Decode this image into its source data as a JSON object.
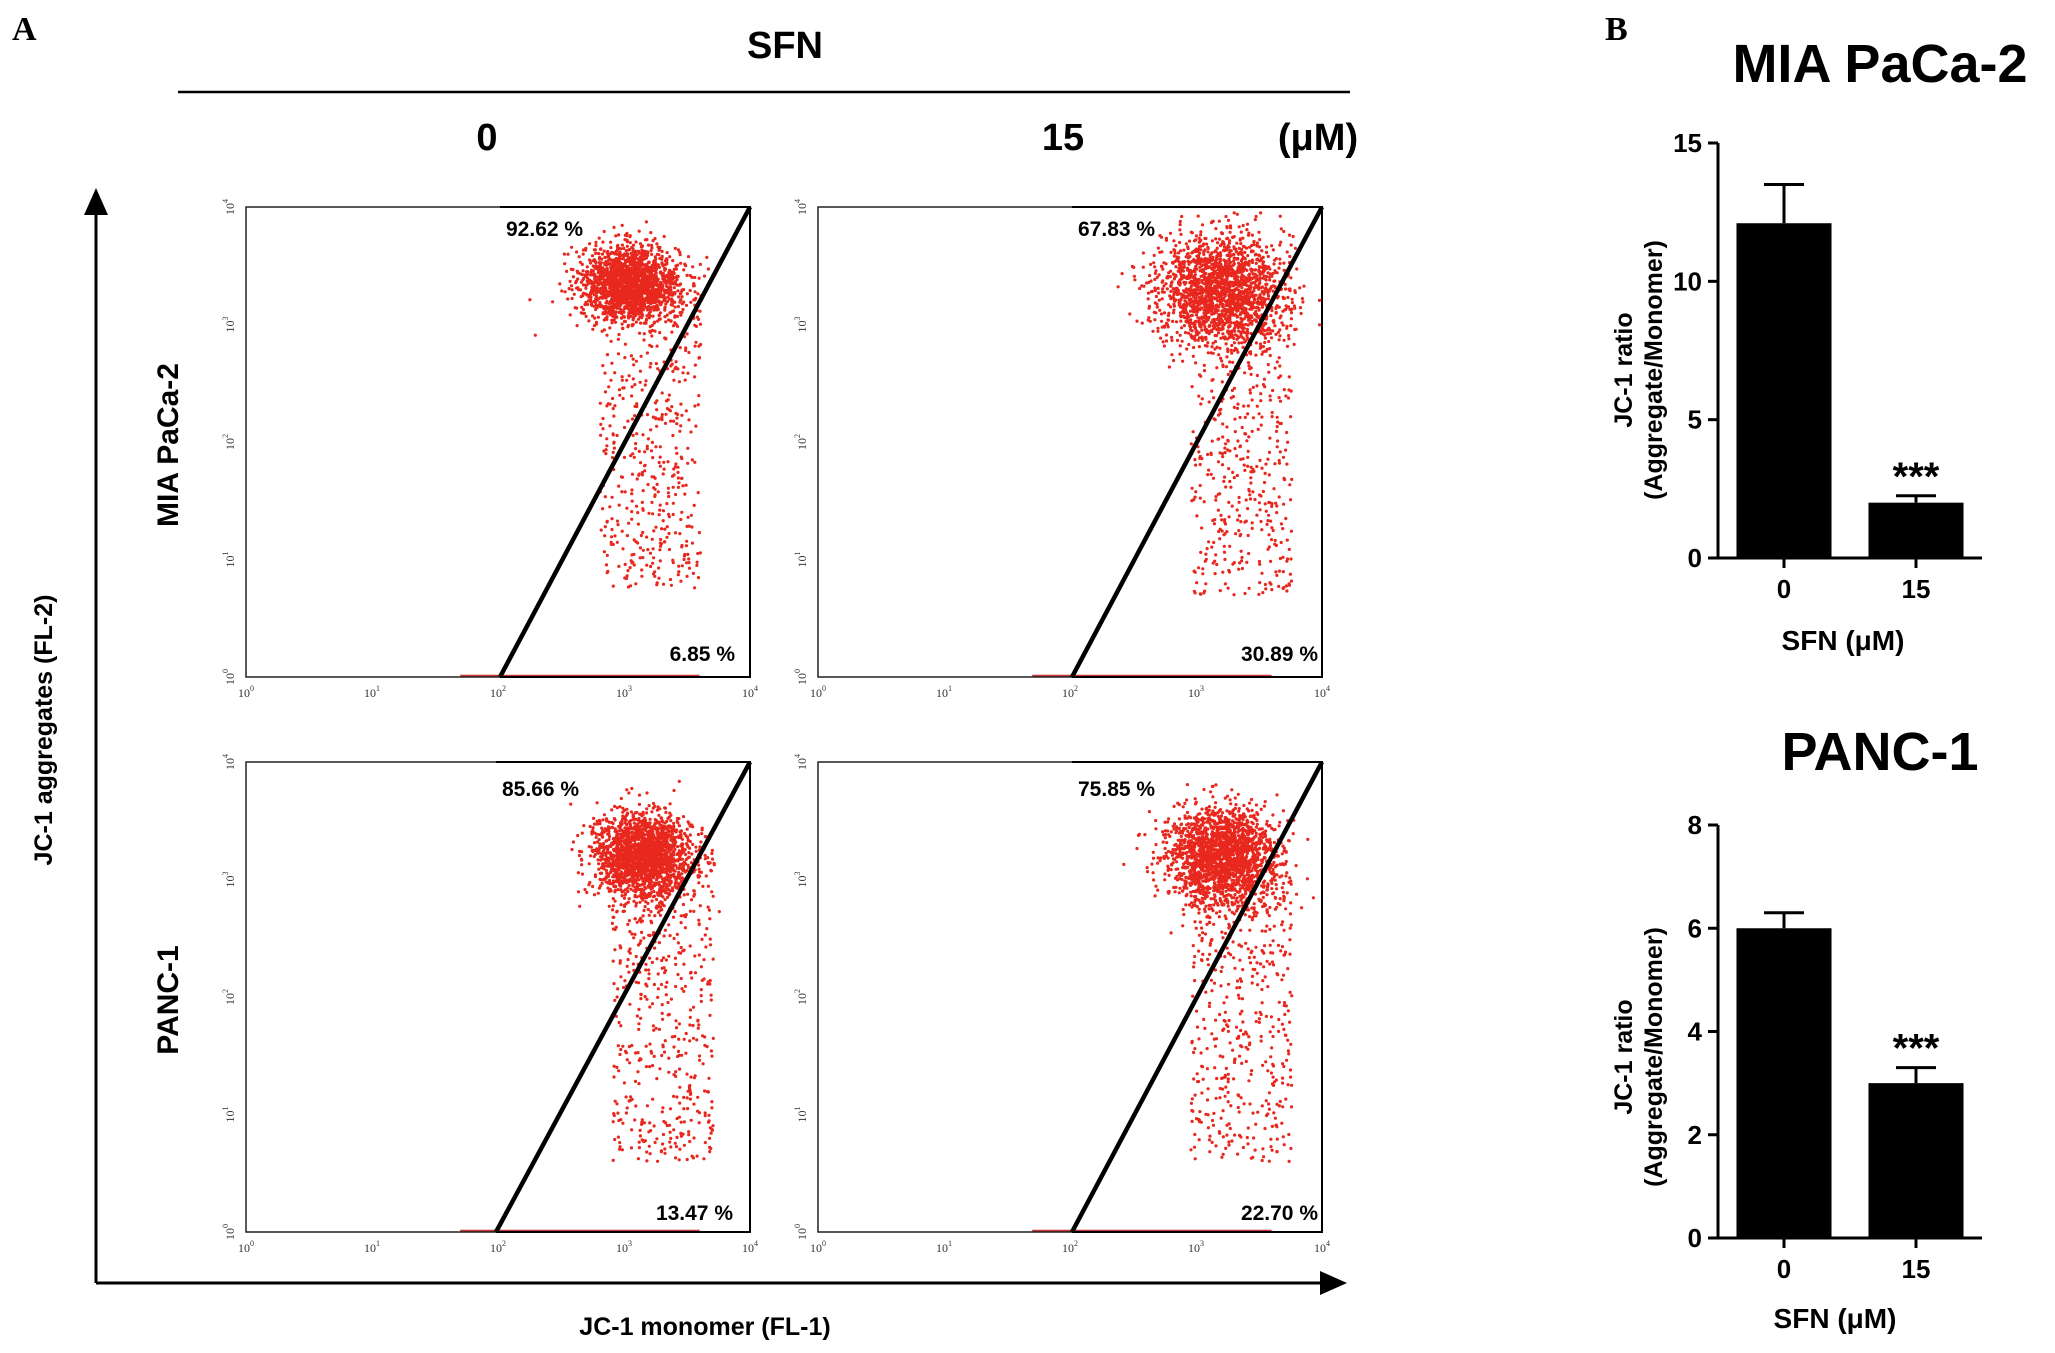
{
  "panel_a": {
    "letter": "A",
    "treatment_header": "SFN",
    "dose_labels": [
      "0",
      "15"
    ],
    "dose_unit": "(μM)",
    "row_labels": [
      "MIA PaCa-2",
      "PANC-1"
    ],
    "y_axis_label": "JC-1 aggregates (FL-2)",
    "x_axis_label": "JC-1 monomer (FL-1)"
  },
  "panel_b": {
    "letter": "B"
  },
  "colors": {
    "dots": "#e8281e",
    "bars": "#000000",
    "gate": "#000000"
  },
  "chart_data": [
    {
      "type": "scatter",
      "id": "flow-mia-0",
      "cell_line": "MIA PaCa-2",
      "sfn_uM": "0",
      "axis_exponents": [
        "0",
        "1",
        "2",
        "3",
        "4"
      ],
      "axis_base": "10",
      "log_range": [
        0,
        4
      ],
      "population_center_log": [
        3.05,
        3.35
      ],
      "population_spread_log": [
        0.35,
        0.35
      ],
      "upper_gate_pct": "92.62 %",
      "lower_gate_pct": "6.85 %"
    },
    {
      "type": "scatter",
      "id": "flow-mia-15",
      "cell_line": "MIA PaCa-2",
      "sfn_uM": "15",
      "axis_exponents": [
        "0",
        "1",
        "2",
        "3",
        "4"
      ],
      "axis_base": "10",
      "log_range": [
        0,
        4
      ],
      "population_center_log": [
        3.2,
        3.3
      ],
      "population_spread_log": [
        0.45,
        0.5
      ],
      "upper_gate_pct": "67.83 %",
      "lower_gate_pct": "30.89 %"
    },
    {
      "type": "scatter",
      "id": "flow-panc-0",
      "cell_line": "PANC-1",
      "sfn_uM": "0",
      "axis_exponents": [
        "0",
        "1",
        "2",
        "3",
        "4"
      ],
      "axis_base": "10",
      "log_range": [
        0,
        4
      ],
      "population_center_log": [
        3.15,
        3.2
      ],
      "population_spread_log": [
        0.35,
        0.4
      ],
      "upper_gate_pct": "85.66 %",
      "lower_gate_pct": "13.47 %"
    },
    {
      "type": "scatter",
      "id": "flow-panc-15",
      "cell_line": "PANC-1",
      "sfn_uM": "15",
      "axis_exponents": [
        "0",
        "1",
        "2",
        "3",
        "4"
      ],
      "axis_base": "10",
      "log_range": [
        0,
        4
      ],
      "population_center_log": [
        3.2,
        3.2
      ],
      "population_spread_log": [
        0.4,
        0.45
      ],
      "upper_gate_pct": "75.85 %",
      "lower_gate_pct": "22.70 %"
    },
    {
      "type": "bar",
      "id": "bar-mia",
      "title": "MIA PaCa-2",
      "categories": [
        "0",
        "15"
      ],
      "values": [
        12.1,
        2.0
      ],
      "errors": [
        1.4,
        0.25
      ],
      "significance": [
        "",
        "***"
      ],
      "ylabel_line1": "JC-1 ratio",
      "ylabel_line2": "(Aggregate/Monomer)",
      "xlabel": "SFN  (μM)",
      "ylim": [
        0,
        15
      ],
      "yticks": [
        0,
        5,
        10,
        15
      ]
    },
    {
      "type": "bar",
      "id": "bar-panc",
      "title": "PANC-1",
      "categories": [
        "0",
        "15"
      ],
      "values": [
        6.0,
        3.0
      ],
      "errors": [
        0.3,
        0.3
      ],
      "significance": [
        "",
        "***"
      ],
      "ylabel_line1": "JC-1 ratio",
      "ylabel_line2": "(Aggregate/Monomer)",
      "xlabel": "SFN  (μM)",
      "ylim": [
        0,
        8
      ],
      "yticks": [
        0,
        2,
        4,
        6,
        8
      ]
    }
  ]
}
